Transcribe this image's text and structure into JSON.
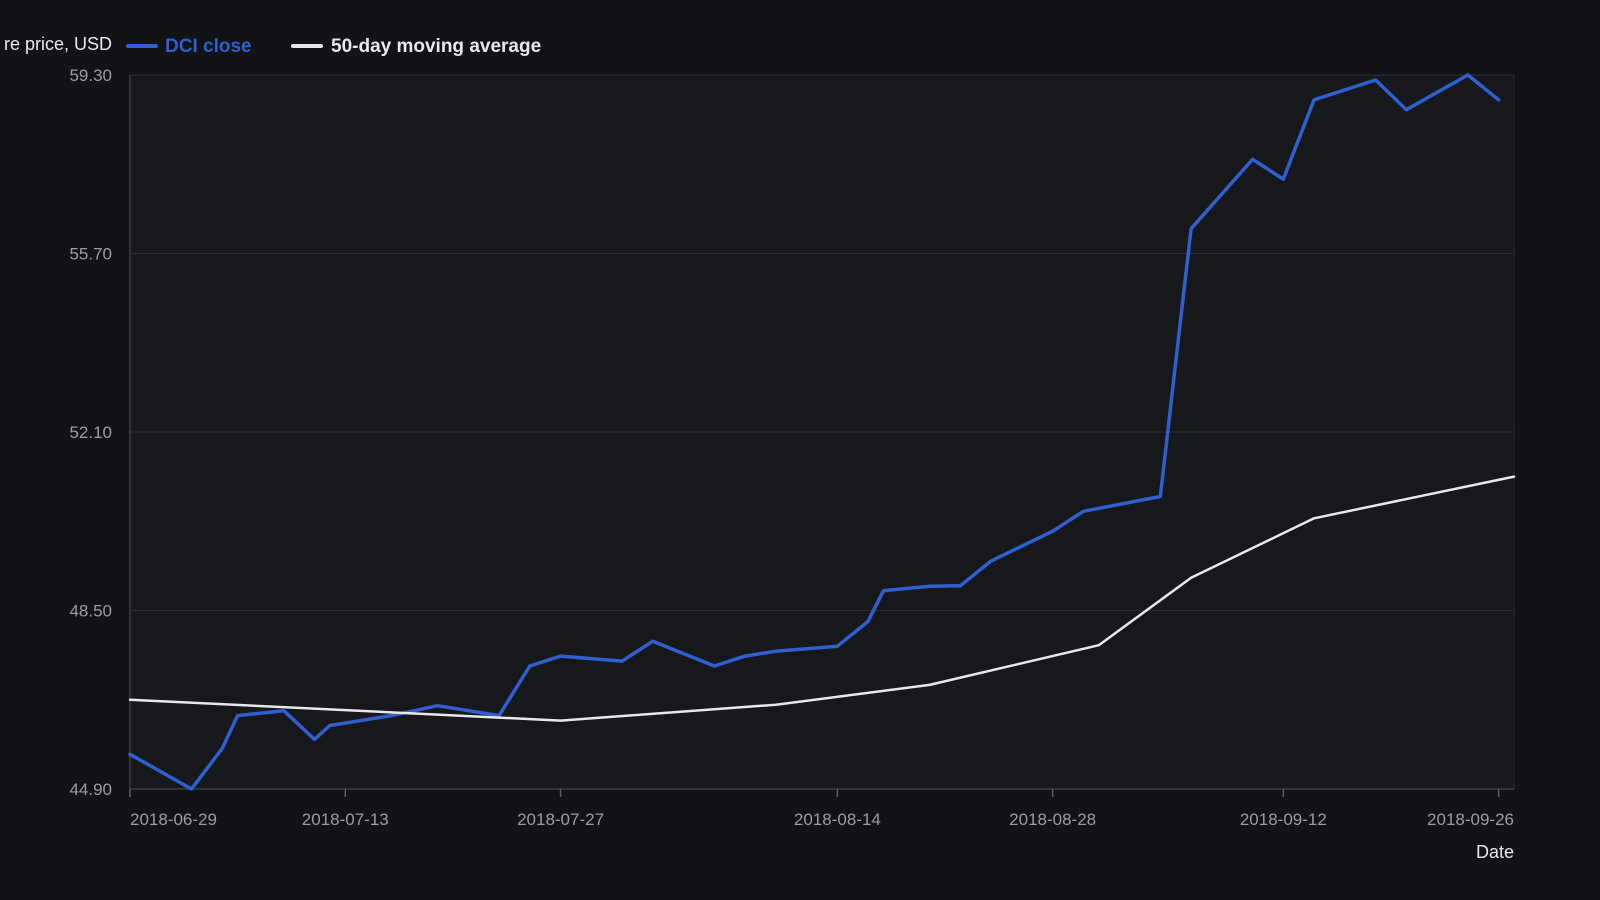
{
  "chart_data": {
    "type": "line",
    "xlabel": "Date",
    "ylabel": "re price, USD",
    "ylim": [
      44.9,
      59.3
    ],
    "yticks": [
      "44.90",
      "48.50",
      "52.10",
      "55.70",
      "59.30"
    ],
    "xticks": [
      "2018-06-29",
      "2018-07-13",
      "2018-07-27",
      "2018-08-14",
      "2018-08-28",
      "2018-09-12",
      "2018-09-26"
    ],
    "xlim": [
      "2018-06-29",
      "2018-09-27"
    ],
    "grid": true,
    "legend_position": "top-left",
    "series": [
      {
        "name": "DCI close",
        "color": "#2f5fd0",
        "x": [
          "2018-06-29",
          "2018-07-03",
          "2018-07-05",
          "2018-07-06",
          "2018-07-09",
          "2018-07-11",
          "2018-07-12",
          "2018-07-16",
          "2018-07-19",
          "2018-07-23",
          "2018-07-25",
          "2018-07-27",
          "2018-07-31",
          "2018-08-02",
          "2018-08-06",
          "2018-08-08",
          "2018-08-10",
          "2018-08-14",
          "2018-08-16",
          "2018-08-17",
          "2018-08-20",
          "2018-08-22",
          "2018-08-24",
          "2018-08-28",
          "2018-08-30",
          "2018-09-04",
          "2018-09-06",
          "2018-09-10",
          "2018-09-12",
          "2018-09-14",
          "2018-09-18",
          "2018-09-20",
          "2018-09-24",
          "2018-09-26"
        ],
        "values": [
          45.6,
          44.9,
          45.72,
          46.38,
          46.48,
          45.9,
          46.18,
          46.38,
          46.58,
          46.38,
          47.38,
          47.58,
          47.48,
          47.88,
          47.38,
          47.58,
          47.68,
          47.78,
          48.28,
          48.9,
          48.99,
          49.0,
          49.5,
          50.1,
          50.5,
          50.8,
          56.2,
          57.6,
          57.2,
          58.8,
          59.2,
          58.6,
          59.3,
          58.8
        ]
      },
      {
        "name": "50-day moving average",
        "color": "#e8e8e8",
        "x": [
          "2018-06-29",
          "2018-07-27",
          "2018-08-10",
          "2018-08-20",
          "2018-08-31",
          "2018-09-06",
          "2018-09-14",
          "2018-09-27"
        ],
        "values": [
          46.7,
          46.28,
          46.6,
          47.0,
          47.8,
          49.16,
          50.36,
          51.2
        ]
      }
    ]
  }
}
